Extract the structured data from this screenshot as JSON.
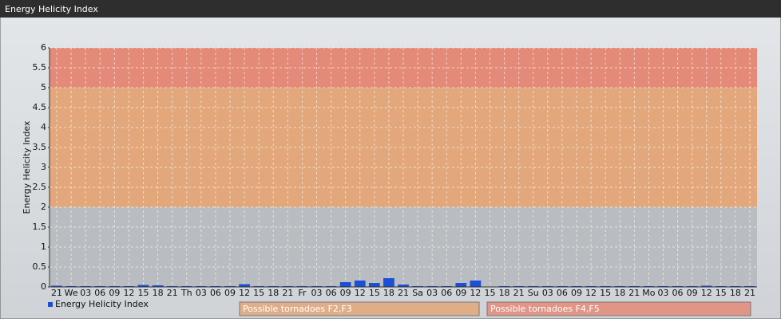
{
  "chart_data": {
    "type": "bar",
    "title": "Energy Helicity Index",
    "y_label": "Energy Helicity Index",
    "categories": [
      "21",
      "We",
      "03",
      "06",
      "09",
      "12",
      "15",
      "18",
      "21",
      "Th",
      "03",
      "06",
      "09",
      "12",
      "15",
      "18",
      "21",
      "Fr",
      "03",
      "06",
      "09",
      "12",
      "15",
      "18",
      "21",
      "Sa",
      "03",
      "06",
      "09",
      "12",
      "15",
      "18",
      "21",
      "Su",
      "03",
      "06",
      "09",
      "12",
      "15",
      "18",
      "21",
      "Mo",
      "03",
      "06",
      "09",
      "12",
      "15",
      "18",
      "21"
    ],
    "series": [
      {
        "name": "Energy Helicity Index",
        "color": "#1a4fd6",
        "values": [
          0.03,
          0.02,
          0.02,
          0.02,
          0.02,
          0.02,
          0.05,
          0.04,
          0.02,
          0.02,
          0.02,
          0.02,
          0.02,
          0.07,
          0.02,
          0.02,
          0.02,
          0.02,
          0.02,
          0.02,
          0.12,
          0.16,
          0.1,
          0.22,
          0.06,
          0.02,
          0.02,
          0.02,
          0.1,
          0.16,
          0.01,
          0.02,
          0.02,
          0.02,
          0.02,
          0.02,
          0.02,
          0.02,
          0.02,
          0.02,
          0.02,
          0.02,
          0.02,
          0.02,
          0.02,
          0.03,
          0.02,
          0.02,
          0.02
        ]
      }
    ],
    "bands": [
      {
        "from": 0,
        "to": 2,
        "color": "#b9bcc0"
      },
      {
        "from": 2,
        "to": 5,
        "color": "#e2a77a",
        "label": "Possible tornadoes F2,F3"
      },
      {
        "from": 5,
        "to": 6,
        "color": "#e38a78",
        "label": "Possible tornadoes F4,F5"
      }
    ],
    "ylim": [
      0,
      6
    ],
    "yticks": [
      0,
      0.5,
      1,
      1.5,
      2,
      2.5,
      3,
      3.5,
      4,
      4.5,
      5,
      5.5,
      6
    ],
    "grid": true
  }
}
